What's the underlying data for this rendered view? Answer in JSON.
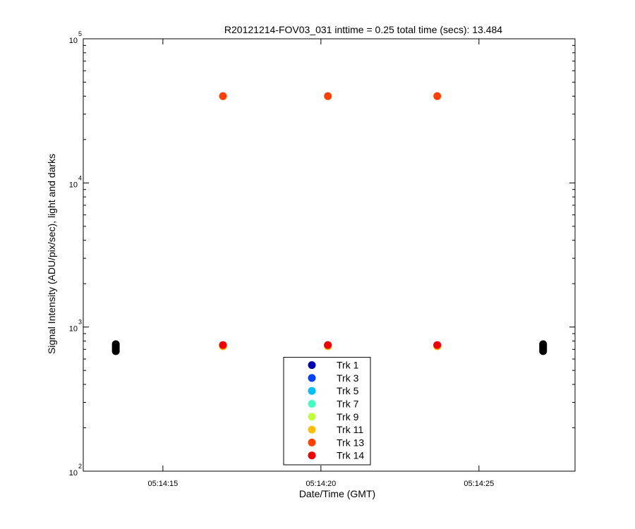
{
  "chart_data": {
    "type": "scatter",
    "title": "R20121214-FOV03_031 inttime = 0.25 total time (secs): 13.484",
    "x_label": "Date/Time (GMT)",
    "y_label": "Signal Intensity (ADU/pix/sec), light and darks",
    "xlim": [
      12.48,
      28.04
    ],
    "xticks": [
      {
        "value": 15,
        "label": "05:14:15"
      },
      {
        "value": 20,
        "label": "05:14:20"
      },
      {
        "value": 25,
        "label": "05:14:25"
      }
    ],
    "ylim": [
      100,
      100000
    ],
    "log_y": true,
    "yticks": [
      {
        "value": 100,
        "label": "10",
        "exponent": "2"
      },
      {
        "value": 1000,
        "label": "10",
        "exponent": "3"
      },
      {
        "value": 10000,
        "label": "10",
        "exponent": "4"
      },
      {
        "value": 100000,
        "label": "10",
        "exponent": "5"
      }
    ],
    "yminorticks": [
      200,
      300,
      400,
      500,
      600,
      700,
      800,
      900,
      2000,
      3000,
      4000,
      5000,
      6000,
      7000,
      8000,
      9000,
      20000,
      30000,
      40000,
      50000,
      60000,
      70000,
      80000,
      90000
    ],
    "legend_position": "lower center",
    "series": [
      {
        "color": "#000000",
        "x": [
          13.51,
          13.51,
          13.51,
          13.51,
          13.51,
          27.03,
          27.03,
          27.03,
          27.03,
          27.03
        ],
        "values": [
          680,
          700,
          720,
          740,
          760,
          680,
          700,
          720,
          740,
          760
        ]
      },
      {
        "name": "Trk 1",
        "color": "#0000b0",
        "x": [
          16.9,
          20.22,
          23.68
        ],
        "values": [
          745,
          745,
          745
        ]
      },
      {
        "name": "Trk 3",
        "color": "#0040ff",
        "x": [
          16.9,
          20.22,
          23.68
        ],
        "values": [
          745,
          745,
          745
        ]
      },
      {
        "name": "Trk 5",
        "color": "#00bfff",
        "x": [
          16.9,
          20.22,
          23.68
        ],
        "values": [
          745,
          745,
          745
        ]
      },
      {
        "name": "Trk 7",
        "color": "#40ffbf",
        "x": [
          16.9,
          20.22,
          23.68
        ],
        "values": [
          745,
          745,
          745
        ]
      },
      {
        "name": "Trk 9",
        "color": "#bfff40",
        "x": [
          16.9,
          20.22,
          23.68
        ],
        "values": [
          740,
          740,
          740
        ]
      },
      {
        "name": "Trk 11",
        "color": "#ffbf00",
        "x": [
          16.9,
          20.22,
          23.68
        ],
        "values": [
          735,
          735,
          735
        ]
      },
      {
        "name": "Trk 13",
        "color": "#ff4000",
        "x": [
          16.9,
          20.22,
          23.68
        ],
        "values": [
          40000,
          40000,
          40000
        ]
      },
      {
        "name": "Trk 14",
        "color": "#f00000",
        "x": [
          16.9,
          20.22,
          23.68
        ],
        "values": [
          750,
          750,
          750
        ]
      }
    ]
  }
}
